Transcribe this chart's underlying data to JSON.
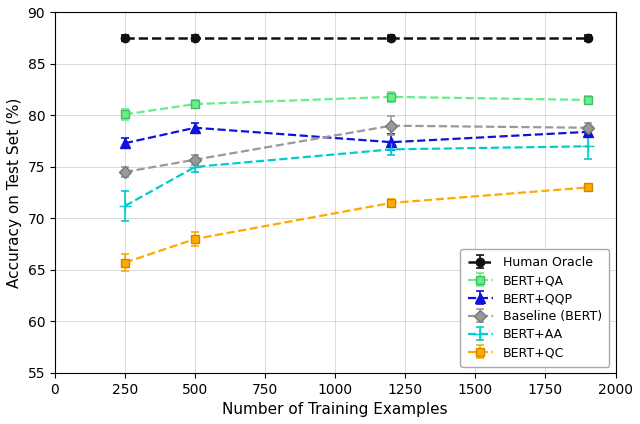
{
  "x": [
    250,
    500,
    1200,
    1900
  ],
  "series": {
    "Human Oracle": {
      "y": [
        87.5,
        87.5,
        87.5,
        87.5
      ],
      "yerr": [
        0.3,
        0.3,
        0.3,
        0.3
      ],
      "color": "#111111",
      "linestyle": "--",
      "marker": "o",
      "markersize": 6,
      "linewidth": 1.8,
      "markerfacecolor": "#111111",
      "markeredgecolor": "#111111"
    },
    "BERT+QA": {
      "y": [
        80.1,
        81.1,
        81.8,
        81.5
      ],
      "yerr": [
        0.5,
        0.4,
        0.5,
        0.4
      ],
      "color": "#66ee88",
      "linestyle": "--",
      "marker": "s",
      "markersize": 6,
      "linewidth": 1.6,
      "markerfacecolor": "#66ee88",
      "markeredgecolor": "#44bb66"
    },
    "BERT+QQP": {
      "y": [
        77.3,
        78.8,
        77.4,
        78.4
      ],
      "yerr": [
        0.5,
        0.5,
        0.8,
        0.5
      ],
      "color": "#1111dd",
      "linestyle": "--",
      "marker": "^",
      "markersize": 7,
      "linewidth": 1.6,
      "markerfacecolor": "#1111dd",
      "markeredgecolor": "#1111dd"
    },
    "Baseline (BERT)": {
      "y": [
        74.5,
        75.7,
        79.0,
        78.8
      ],
      "yerr": [
        0.5,
        0.5,
        0.9,
        0.5
      ],
      "color": "#999999",
      "linestyle": "--",
      "marker": "D",
      "markersize": 6,
      "linewidth": 1.6,
      "markerfacecolor": "#999999",
      "markeredgecolor": "#777777"
    },
    "BERT+AA": {
      "y": [
        71.2,
        75.0,
        76.7,
        77.0
      ],
      "yerr": [
        1.5,
        0.5,
        0.5,
        1.2
      ],
      "color": "#00cccc",
      "linestyle": "--",
      "marker": "+",
      "markersize": 9,
      "linewidth": 1.6,
      "markerfacecolor": "#00cccc",
      "markeredgecolor": "#00cccc"
    },
    "BERT+QC": {
      "y": [
        65.7,
        68.0,
        71.5,
        73.0
      ],
      "yerr": [
        0.8,
        0.7,
        0.4,
        0.3
      ],
      "color": "#ffaa00",
      "linestyle": "--",
      "marker": "s",
      "markersize": 6,
      "linewidth": 1.6,
      "markerfacecolor": "#ffaa00",
      "markeredgecolor": "#cc8800"
    }
  },
  "xlabel": "Number of Training Examples",
  "ylabel": "Accuracy on Test Set (%)",
  "xlim": [
    0,
    2000
  ],
  "ylim": [
    55,
    90
  ],
  "yticks": [
    55,
    60,
    65,
    70,
    75,
    80,
    85,
    90
  ],
  "xticks": [
    0,
    250,
    500,
    750,
    1000,
    1250,
    1500,
    1750,
    2000
  ],
  "xtick_labels": [
    "0",
    "250",
    "500",
    "750",
    "1000",
    "1250",
    "1500",
    "1750",
    "2000"
  ],
  "grid": true,
  "legend_loc": "lower right",
  "background_color": "#ffffff",
  "tick_fontsize": 10,
  "label_fontsize": 11,
  "legend_fontsize": 9
}
